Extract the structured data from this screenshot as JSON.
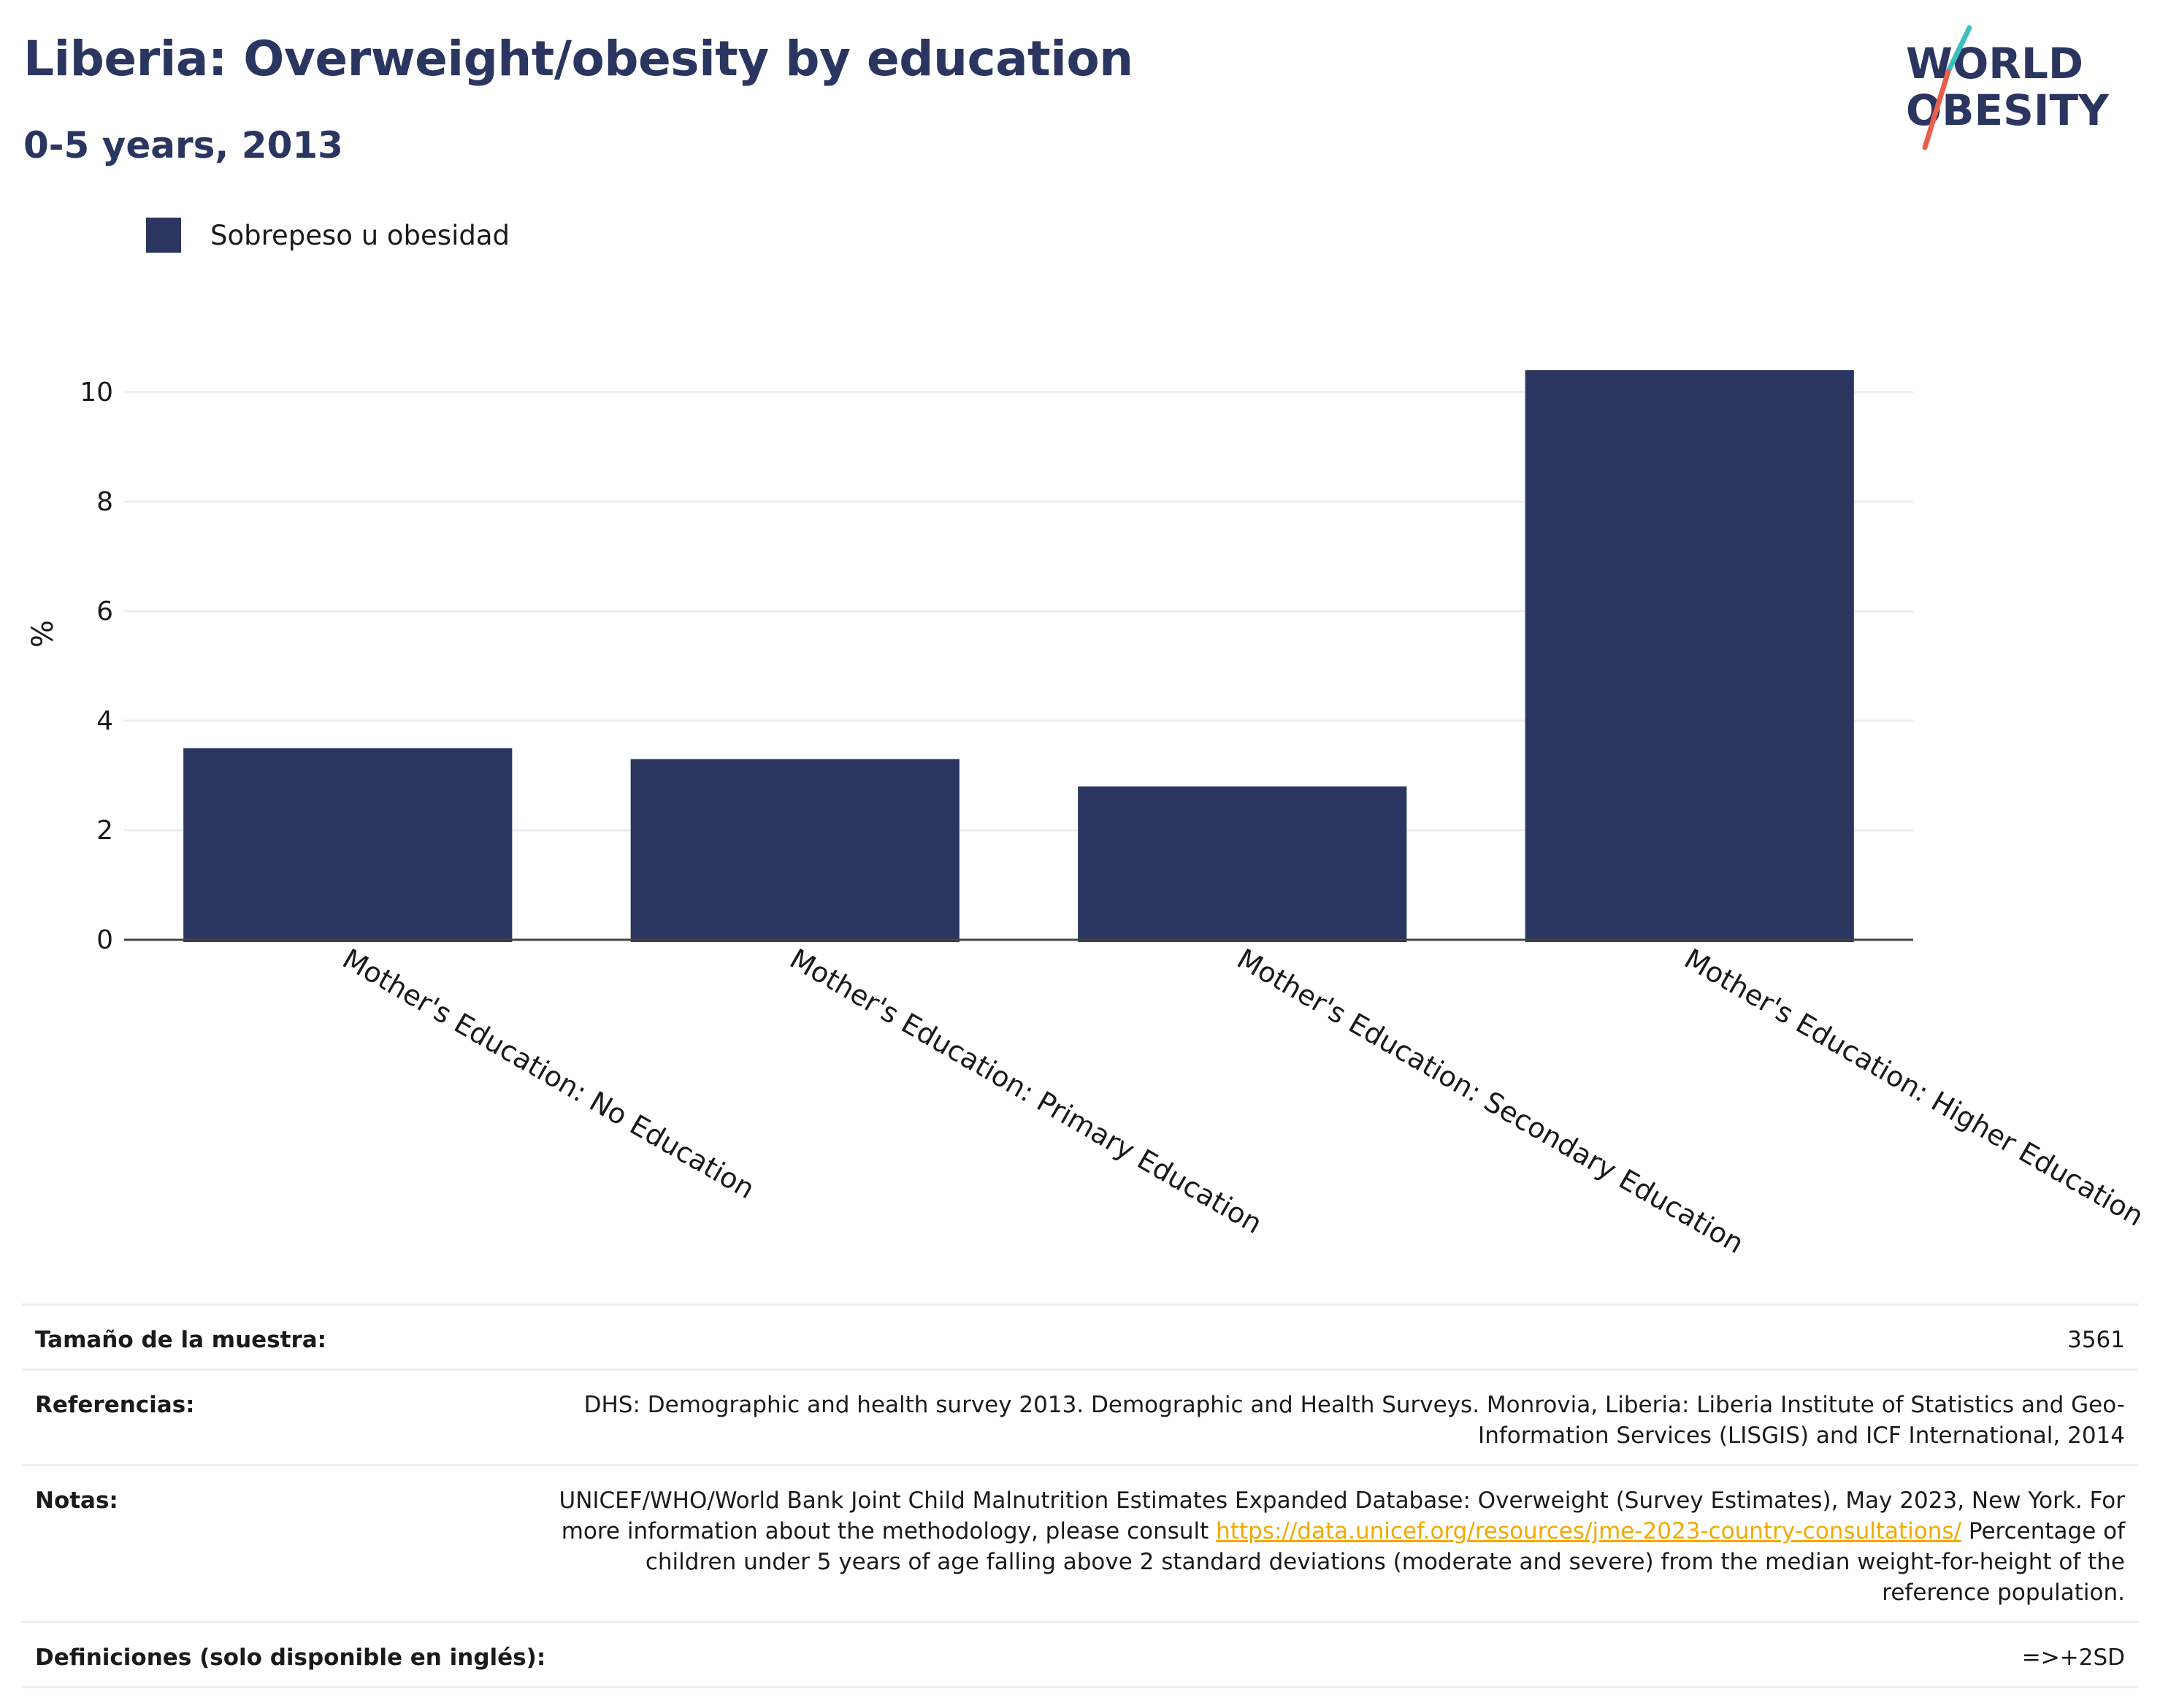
{
  "title": "Liberia: Overweight/obesity by education",
  "subtitle": "0-5 years, 2013",
  "logo": {
    "line1": "WORLD",
    "line2": "OBESITY"
  },
  "colors": {
    "bar": "#2a3660",
    "title": "#2a3560",
    "link": "#f2a900",
    "logo_slash_top": "#3cc0c0",
    "logo_slash_bottom": "#e8604c"
  },
  "chart_data": {
    "type": "bar",
    "categories": [
      "Mother's Education: No Education",
      "Mother's Education: Primary Education",
      "Mother's Education: Secondary Education",
      "Mother's Education: Higher Education"
    ],
    "series": [
      {
        "name": "Sobrepeso u obesidad",
        "values": [
          3.5,
          3.3,
          2.8,
          10.4
        ]
      }
    ],
    "title": "Liberia: Overweight/obesity by education",
    "xlabel": "",
    "ylabel": "%",
    "ylim": [
      0,
      11
    ],
    "yticks": [
      0,
      2,
      4,
      6,
      8,
      10
    ],
    "grid": true,
    "legend": "top-left"
  },
  "info": {
    "sample": {
      "label": "Tamaño de la muestra:",
      "value": "3561"
    },
    "references": {
      "label": "Referencias:",
      "value": "DHS: Demographic and health survey 2013. Demographic and Health Surveys. Monrovia, Liberia: Liberia Institute of Statistics and Geo-Information Services (LISGIS) and ICF International, 2014"
    },
    "notes": {
      "label": "Notas:",
      "text_before": "UNICEF/WHO/World Bank Joint Child Malnutrition Estimates Expanded Database: Overweight (Survey Estimates), May 2023, New York. For more information about the methodology, please consult ",
      "link": "https://data.unicef.org/resources/jme-2023-country-consultations/",
      "text_after": " Percentage of children under 5 years of age falling above 2 standard deviations (moderate and severe) from the median weight-for-height of the reference population."
    },
    "definitions": {
      "label": "Definiciones (solo disponible en inglés):",
      "value": "=>+2SD"
    }
  }
}
